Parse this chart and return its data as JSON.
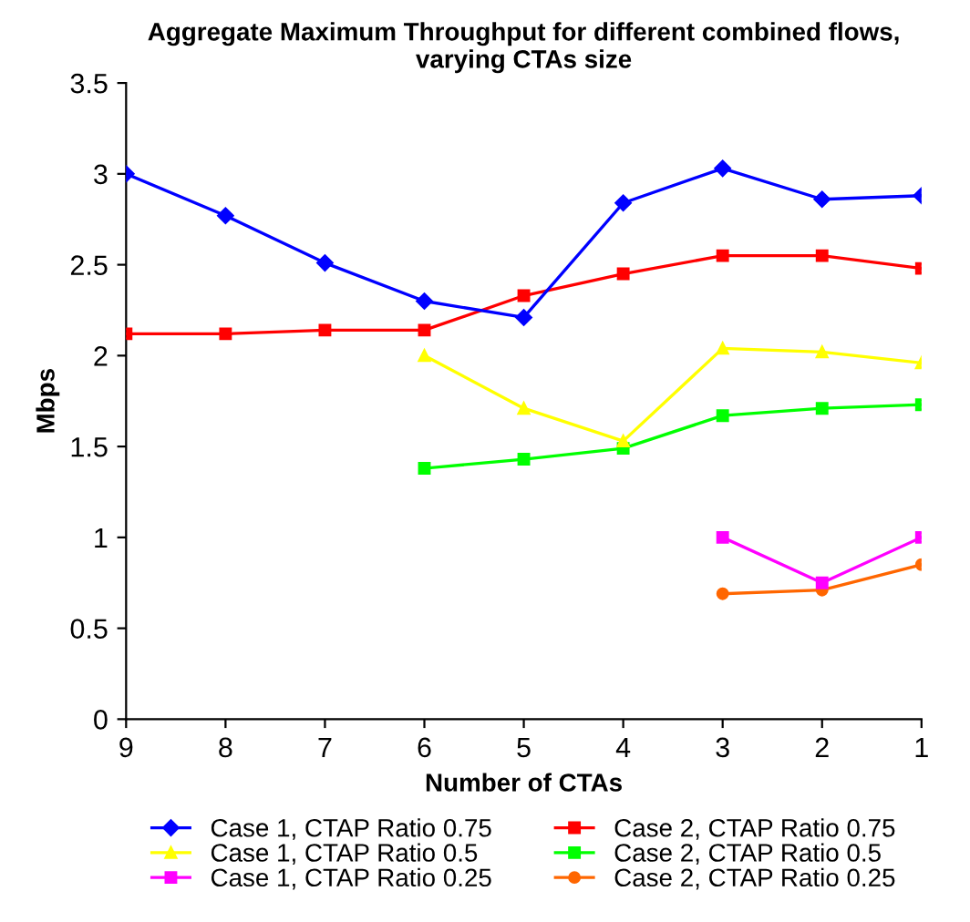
{
  "chart_data": {
    "type": "line",
    "title": "Aggregate Maximum Throughput for different combined flows,\nvarying CTAs size",
    "xlabel": "Number of CTAs",
    "ylabel": "Mbps",
    "categories": [
      "9",
      "8",
      "7",
      "6",
      "5",
      "4",
      "3",
      "2",
      "1"
    ],
    "ylim": [
      0,
      3.5
    ],
    "yticks": [
      0,
      0.5,
      1,
      1.5,
      2,
      2.5,
      3,
      3.5
    ],
    "grid": false,
    "legend": "bottom",
    "series": [
      {
        "name": "Case 1, CTAP Ratio 0.75",
        "color": "#0000ff",
        "marker": "diamond",
        "values": [
          3.0,
          2.77,
          2.51,
          2.3,
          2.21,
          2.84,
          3.03,
          2.86,
          2.88
        ]
      },
      {
        "name": "Case 2, CTAP Ratio 0.75",
        "color": "#ff0000",
        "marker": "square",
        "values": [
          2.12,
          2.12,
          2.14,
          2.14,
          2.33,
          2.45,
          2.55,
          2.55,
          2.48
        ]
      },
      {
        "name": "Case 1, CTAP Ratio 0.5",
        "color": "#ffff00",
        "marker": "triangle",
        "values": [
          null,
          null,
          null,
          2.0,
          1.71,
          1.53,
          2.04,
          2.02,
          1.96
        ]
      },
      {
        "name": "Case 2, CTAP Ratio 0.5",
        "color": "#00ff00",
        "marker": "square",
        "values": [
          null,
          null,
          null,
          1.38,
          1.43,
          1.49,
          1.67,
          1.71,
          1.73
        ]
      },
      {
        "name": "Case 1, CTAP Ratio 0.25",
        "color": "#ff00ff",
        "marker": "square",
        "values": [
          null,
          null,
          null,
          null,
          null,
          null,
          1.0,
          0.75,
          1.0
        ]
      },
      {
        "name": "Case 2, CTAP Ratio 0.25",
        "color": "#ff6600",
        "marker": "circle",
        "values": [
          null,
          null,
          null,
          null,
          null,
          null,
          0.69,
          0.71,
          0.85
        ]
      }
    ]
  }
}
